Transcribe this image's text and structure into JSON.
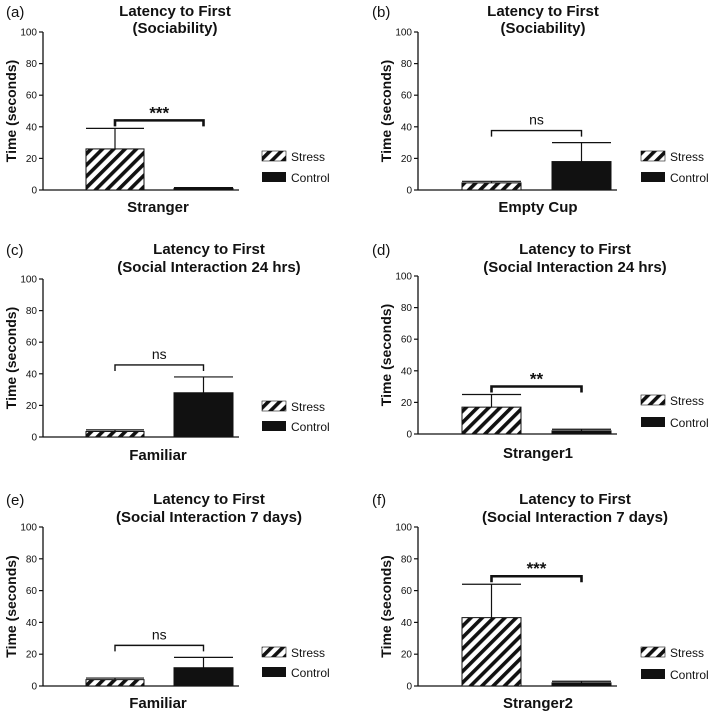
{
  "colors": {
    "stress_hatch": "#111111",
    "control_fill": "#111111",
    "axis": "#111111",
    "background": "#ffffff"
  },
  "legend": {
    "stress": "Stress",
    "control": "Control"
  },
  "chart_data": [
    {
      "panel": "(a)",
      "type": "bar",
      "title": "Latency to First",
      "subtitle": "(Sociability)",
      "ylabel": "Time (seconds)",
      "xlabel": "Stranger",
      "ylim": [
        0,
        100
      ],
      "yticks": [
        0,
        20,
        40,
        60,
        80,
        100
      ],
      "series": [
        {
          "name": "Stress",
          "value": 26,
          "error": 13
        },
        {
          "name": "Control",
          "value": 1,
          "error": 0.5
        }
      ],
      "significance": "***"
    },
    {
      "panel": "(b)",
      "type": "bar",
      "title": "Latency to First",
      "subtitle": "(Sociability)",
      "ylabel": "Time (seconds)",
      "xlabel": "Empty Cup",
      "ylim": [
        0,
        100
      ],
      "yticks": [
        0,
        20,
        40,
        60,
        80,
        100
      ],
      "series": [
        {
          "name": "Stress",
          "value": 4.5,
          "error": 1
        },
        {
          "name": "Control",
          "value": 18,
          "error": 12
        }
      ],
      "significance": "ns"
    },
    {
      "panel": "(c)",
      "type": "bar",
      "title": "Latency to First",
      "subtitle": "(Social Interaction 24 hrs)",
      "ylabel": "Time (seconds)",
      "xlabel": "Familiar",
      "ylim": [
        0,
        100
      ],
      "yticks": [
        0,
        20,
        40,
        60,
        80,
        100
      ],
      "series": [
        {
          "name": "Stress",
          "value": 3.5,
          "error": 1
        },
        {
          "name": "Control",
          "value": 28,
          "error": 10
        }
      ],
      "significance": "ns"
    },
    {
      "panel": "(d)",
      "type": "bar",
      "title": "Latency to First",
      "subtitle": "(Social Interaction 24 hrs)",
      "ylabel": "Time (seconds)",
      "xlabel": "Stranger1",
      "ylim": [
        0,
        100
      ],
      "yticks": [
        0,
        20,
        40,
        60,
        80,
        100
      ],
      "series": [
        {
          "name": "Stress",
          "value": 17,
          "error": 8
        },
        {
          "name": "Control",
          "value": 2,
          "error": 1
        }
      ],
      "significance": "**"
    },
    {
      "panel": "(e)",
      "type": "bar",
      "title": "Latency to First",
      "subtitle": "(Social Interaction 7 days)",
      "ylabel": "Time (seconds)",
      "xlabel": "Familiar",
      "ylim": [
        0,
        100
      ],
      "yticks": [
        0,
        20,
        40,
        60,
        80,
        100
      ],
      "series": [
        {
          "name": "Stress",
          "value": 4,
          "error": 1
        },
        {
          "name": "Control",
          "value": 11.5,
          "error": 6.5
        }
      ],
      "significance": "ns"
    },
    {
      "panel": "(f)",
      "type": "bar",
      "title": "Latency to First",
      "subtitle": "(Social Interaction 7 days)",
      "ylabel": "Time (seconds)",
      "xlabel": "Stranger2",
      "ylim": [
        0,
        100
      ],
      "yticks": [
        0,
        20,
        40,
        60,
        80,
        100
      ],
      "series": [
        {
          "name": "Stress",
          "value": 43,
          "error": 21
        },
        {
          "name": "Control",
          "value": 2,
          "error": 1
        }
      ],
      "significance": "***"
    }
  ]
}
